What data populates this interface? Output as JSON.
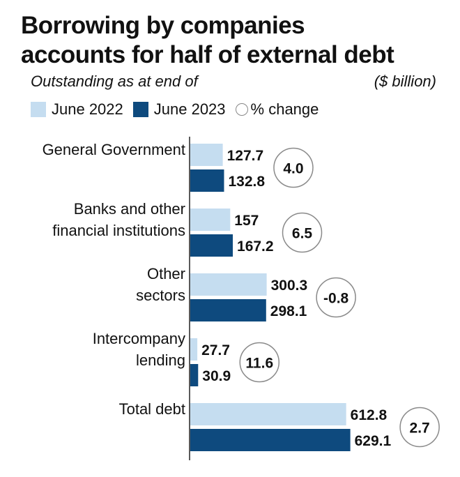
{
  "chart_data": {
    "type": "bar",
    "orientation": "horizontal",
    "title": "Borrowing by companies accounts for half of external debt",
    "subtitle": "Outstanding as at end of",
    "unit": "($ billion)",
    "categories": [
      [
        "General Government"
      ],
      [
        "Banks and other",
        "financial institutions"
      ],
      [
        "Other",
        "sectors"
      ],
      [
        "Intercompany",
        "lending"
      ],
      [
        "Total debt"
      ]
    ],
    "series": [
      {
        "name": "June 2022",
        "values": [
          127.7,
          157,
          300.3,
          27.7,
          612.8
        ]
      },
      {
        "name": "June 2023",
        "values": [
          132.8,
          167.2,
          298.1,
          30.9,
          629.1
        ]
      }
    ],
    "data_labels": [
      [
        "127.7",
        "157",
        "300.3",
        "27.7",
        "612.8"
      ],
      [
        "132.8",
        "167.2",
        "298.1",
        "30.9",
        "629.1"
      ]
    ],
    "pct_change_label": "% change",
    "pct_change": [
      "4.0",
      "6.5",
      "-0.8",
      "11.6",
      "2.7"
    ],
    "colors": {
      "June 2022": "#c5ddf0",
      "June 2023": "#0e4a7e",
      "circle": "#8a8a8a",
      "axis": "#222222"
    },
    "legend_position": "top-left",
    "grid": false
  }
}
